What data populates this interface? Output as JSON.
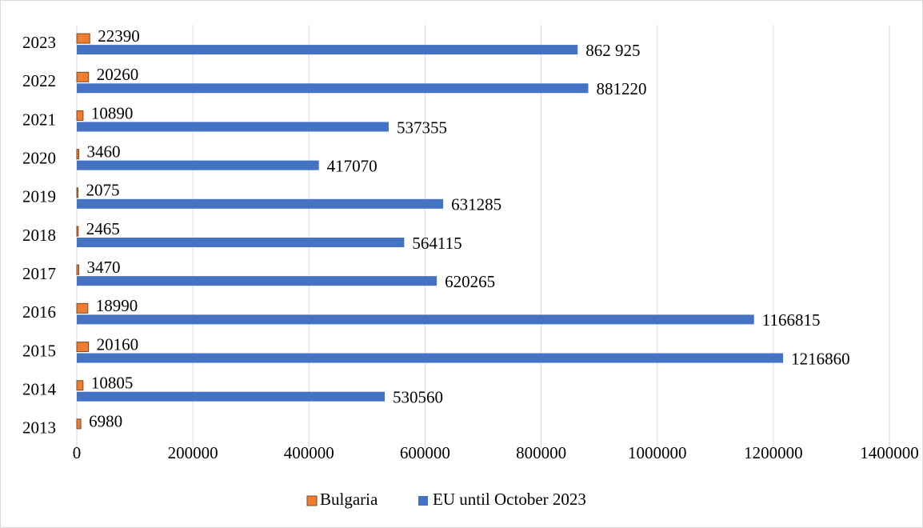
{
  "chart_data": {
    "type": "bar",
    "orientation": "horizontal",
    "categories": [
      "2013",
      "2014",
      "2015",
      "2016",
      "2017",
      "2018",
      "2019",
      "2020",
      "2021",
      "2022",
      "2023"
    ],
    "series": [
      {
        "name": "Bulgaria",
        "color": "#ed7d31",
        "values": [
          6980,
          10805,
          20160,
          18990,
          3470,
          2465,
          2075,
          3460,
          10890,
          20260,
          22390
        ]
      },
      {
        "name": "EU until October 2023",
        "color": "#4472c4",
        "values": [
          null,
          530560,
          1216860,
          1166815,
          620265,
          564115,
          631285,
          417070,
          537355,
          881220,
          862925
        ],
        "value_labels": [
          null,
          "530560",
          "1216860",
          "1166815",
          "620265",
          "564115",
          "631285",
          "417070",
          "537355",
          "881220",
          "862 925"
        ]
      }
    ],
    "xlim": [
      0,
      1400000
    ],
    "xticks": [
      0,
      200000,
      400000,
      600000,
      800000,
      1000000,
      1200000,
      1400000
    ],
    "grid": true,
    "legend": "bottom"
  }
}
